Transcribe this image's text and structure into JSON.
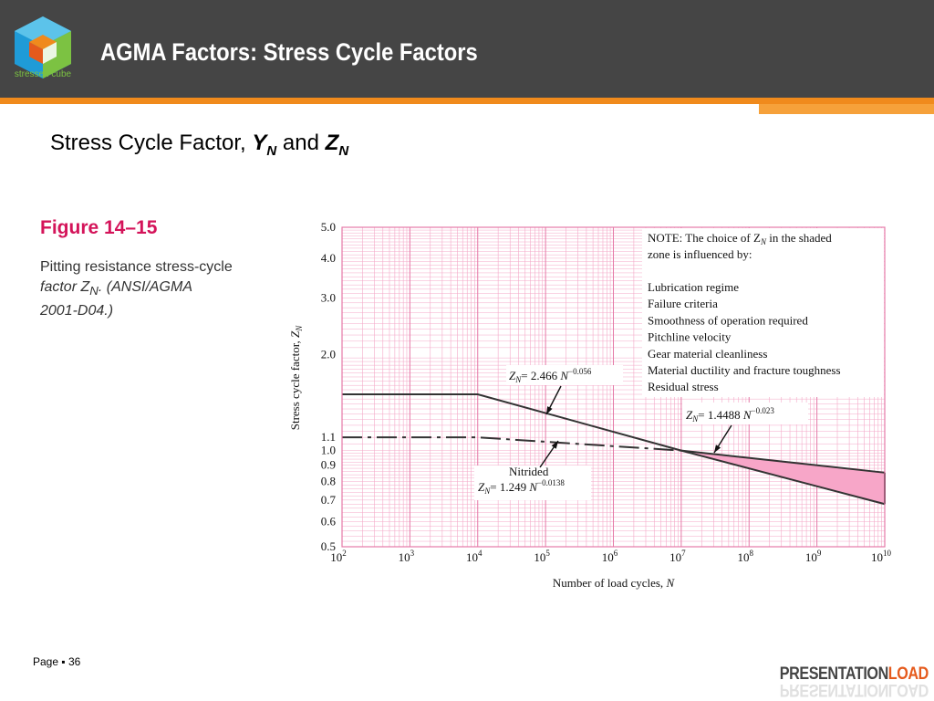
{
  "slide": {
    "title": "AGMA Factors: Stress Cycle Factors",
    "logo_text": "stressed cube",
    "subtitle_prefix": "Stress Cycle Factor, ",
    "subtitle_and": "and",
    "subtitle_y": "Y",
    "subtitle_z": "Z",
    "subtitle_sub": "N",
    "figure_label": "Figure 14–15",
    "caption_line1": "Pitting resistance stress-cycle",
    "caption_line2": "factor Z",
    "caption_sub": "N",
    "caption_line2b": ". (ANSI/AGMA",
    "caption_line3": "2001-D04.)",
    "page_label": "Page ▪ 36",
    "brand_main": "PRESENTATION",
    "brand_accent": "LOAD",
    "colors": {
      "header": "#454545",
      "accent": "#f08a1c",
      "figure": "#d4145a",
      "grid": "#f4a9c8",
      "shade": "#f7a6c8"
    }
  },
  "chart_data": {
    "type": "line",
    "xscale": "log",
    "yscale": "log",
    "xlim": [
      100,
      10000000000
    ],
    "ylim": [
      0.5,
      5.0
    ],
    "xlabel": "Number of load cycles, N",
    "ylabel": "Stress cycle factor, Z_N",
    "x_ticks": [
      {
        "value": 100,
        "base": "10",
        "exp": "2"
      },
      {
        "value": 1000,
        "base": "10",
        "exp": "3"
      },
      {
        "value": 10000,
        "base": "10",
        "exp": "4"
      },
      {
        "value": 100000,
        "base": "10",
        "exp": "5"
      },
      {
        "value": 1000000,
        "base": "10",
        "exp": "6"
      },
      {
        "value": 10000000,
        "base": "10",
        "exp": "7"
      },
      {
        "value": 100000000,
        "base": "10",
        "exp": "8"
      },
      {
        "value": 1000000000,
        "base": "10",
        "exp": "9"
      },
      {
        "value": 10000000000,
        "base": "10",
        "exp": "10"
      }
    ],
    "y_ticks": [
      {
        "value": 5.0,
        "label": "5.0"
      },
      {
        "value": 4.0,
        "label": "4.0"
      },
      {
        "value": 3.0,
        "label": "3.0"
      },
      {
        "value": 2.0,
        "label": "2.0"
      },
      {
        "value": 1.1,
        "label": "1.1"
      },
      {
        "value": 1.0,
        "label": "1.0"
      },
      {
        "value": 0.9,
        "label": "0.9"
      },
      {
        "value": 0.8,
        "label": "0.8"
      },
      {
        "value": 0.7,
        "label": "0.7"
      },
      {
        "value": 0.6,
        "label": "0.6"
      },
      {
        "value": 0.5,
        "label": "0.5"
      }
    ],
    "series": [
      {
        "style": "solid",
        "points": [
          [
            100,
            1.5
          ],
          [
            10000,
            1.5
          ],
          [
            10000000,
            1.0
          ],
          [
            10000000000,
            0.68
          ]
        ]
      },
      {
        "style": "dashdot",
        "points": [
          [
            100,
            1.1
          ],
          [
            10000,
            1.1
          ],
          [
            10000000,
            1.0
          ]
        ]
      },
      {
        "style": "solid",
        "points": [
          [
            10000000,
            1.0
          ],
          [
            10000000000,
            0.853
          ]
        ]
      }
    ],
    "shaded_region": {
      "upper": [
        [
          10000000,
          1.0
        ],
        [
          10000000000,
          0.853
        ]
      ],
      "lower": [
        [
          10000000,
          1.0
        ],
        [
          10000000000,
          0.68
        ]
      ]
    },
    "annotations": {
      "note_title": "NOTE:",
      "note_text_a": "The choice of Z",
      "note_sub": "N",
      "note_text_b": " in the shaded",
      "note_text_c": "zone is influenced by:",
      "note_items": [
        "Lubrication regime",
        "Failure criteria",
        "Smoothness of operation required",
        "Pitchline velocity",
        "Gear material cleanliness",
        "Material ductility and fracture toughness",
        "Residual stress"
      ],
      "eq1": {
        "z": "Z",
        "sub": "N",
        "rhs": "= 2.466 N",
        "exp": "−0.056"
      },
      "eq2": {
        "z": "Z",
        "sub": "N",
        "rhs": "= 1.4488 N",
        "exp": "−0.023"
      },
      "nitrided": "Nitrided",
      "eq3": {
        "z": "Z",
        "sub": "N",
        "rhs": "= 1.249 N",
        "exp": "−0.0138"
      }
    }
  }
}
